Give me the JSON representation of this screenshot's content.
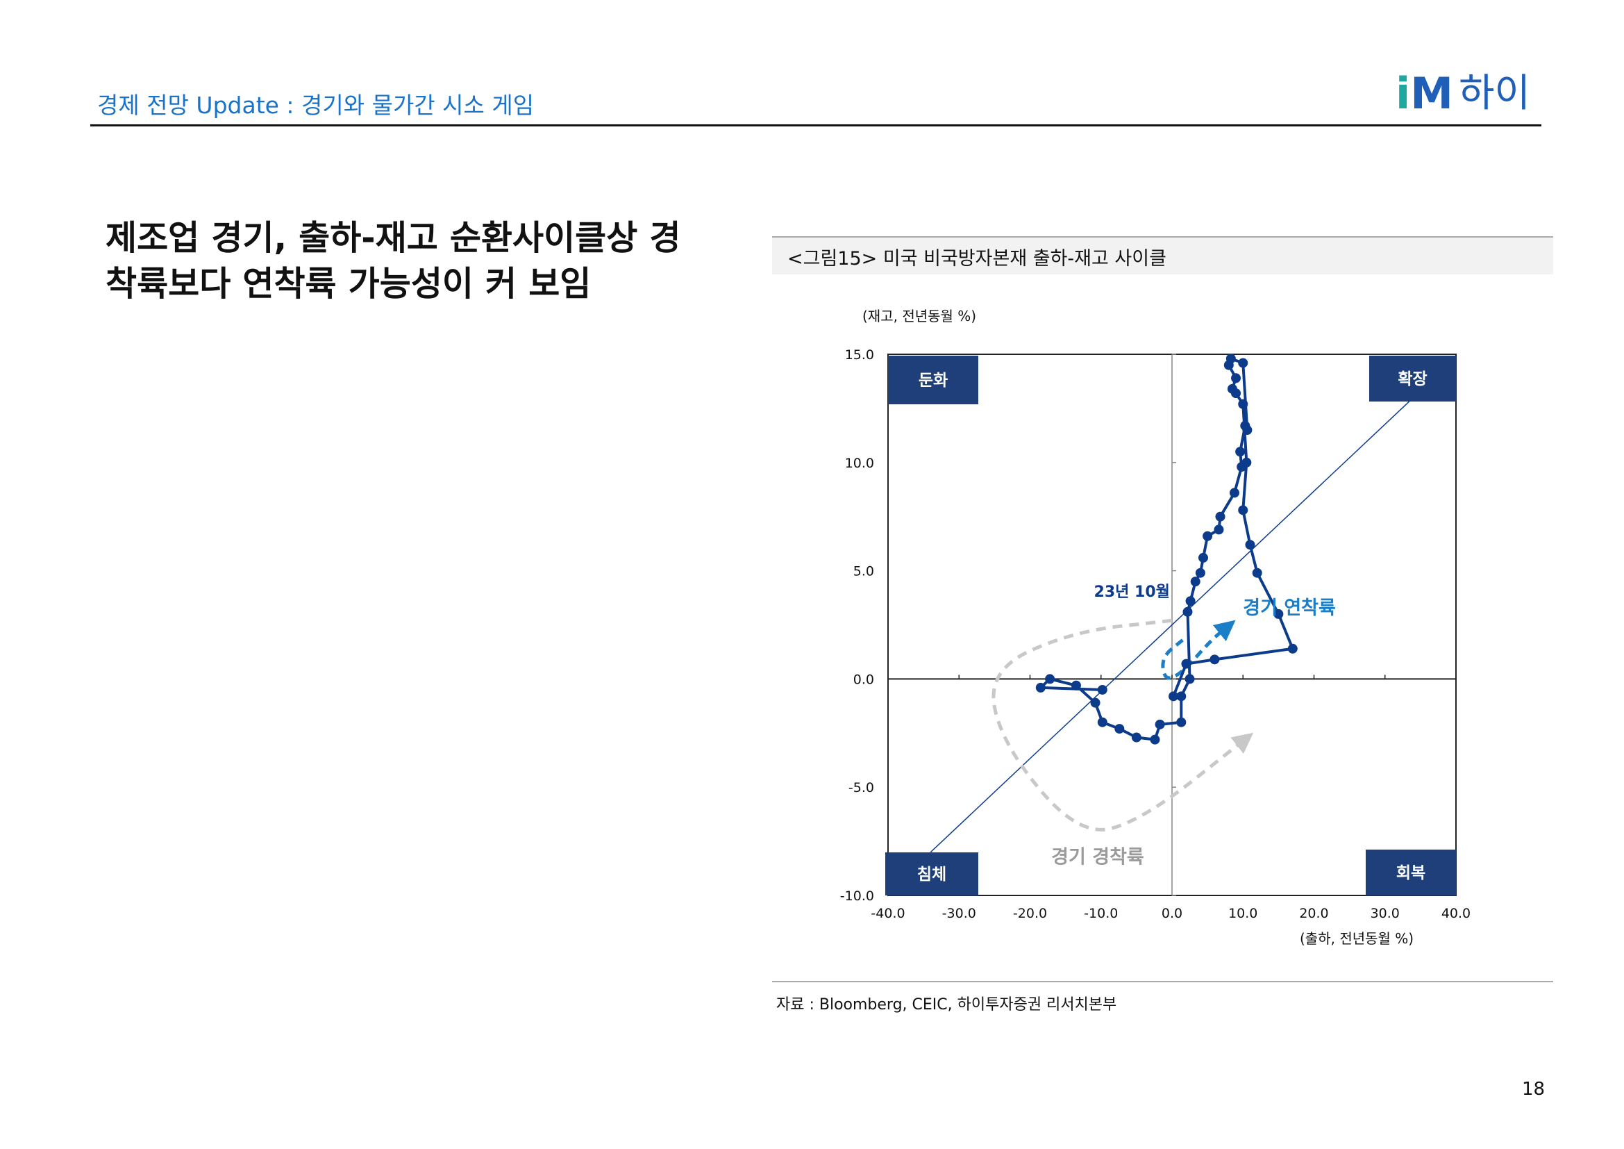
{
  "header": {
    "title": "경제 전망 Update : 경기와 물가간 시소 게임",
    "logo_i": "i",
    "logo_m": "M",
    "logo_text": "하이",
    "accent_color": "#1a73c8",
    "logo_color": "#1f5fb8"
  },
  "headline": {
    "line1": "제조업 경기, 출하-재고 순환사이클상 경",
    "line2": "착륙보다 연착륙 가능성이 커 보임"
  },
  "figure": {
    "caption": "<그림15> 미국 비국방자본재 출하-재고 사이클",
    "source": "자료 : Bloomberg, CEIC, 하이투자증권 리서치본부"
  },
  "page_number": "18",
  "chart_data": {
    "type": "scatter",
    "ylabel": "(재고, 전년동월 %)",
    "xlabel": "(출하, 전년동월 %)",
    "xlim": [
      -40,
      40
    ],
    "ylim": [
      -10,
      15
    ],
    "x_ticks": [
      "-40.0",
      "-30.0",
      "-20.0",
      "-10.0",
      "0.0",
      "10.0",
      "20.0",
      "30.0",
      "40.0"
    ],
    "x_tick_values": [
      -40,
      -30,
      -20,
      -10,
      0,
      10,
      20,
      30,
      40
    ],
    "y_ticks": [
      "-10.0",
      "-5.0",
      "0.0",
      "5.0",
      "10.0",
      "15.0"
    ],
    "y_tick_values": [
      -10,
      -5,
      0,
      5,
      10,
      15
    ],
    "quadrants": {
      "top_left": "둔화",
      "top_right": "확장",
      "bottom_left": "침체",
      "bottom_right": "회복"
    },
    "annotations": {
      "latest": "23년 10월",
      "soft_landing": "경기 연착륙",
      "hard_landing": "경기 경착륙"
    },
    "series_color": "#0d3b8c",
    "soft_color": "#1a7fc8",
    "hard_color": "#c8c8c8",
    "series": [
      {
        "name": "비국방자본재 출하-재고",
        "x": [
          0.2,
          2.0,
          6.0,
          17.0,
          15.0,
          12.0,
          11.0,
          10.0,
          10.5,
          10.0,
          9.0,
          8.5,
          9.0,
          8.0,
          8.3,
          10.0,
          10.6,
          10.3,
          9.6,
          9.8,
          8.8,
          6.8,
          6.6,
          5.0,
          4.4,
          4.0,
          3.3,
          2.6,
          2.2,
          2.5,
          1.3,
          1.3,
          -1.7,
          -2.4,
          -5.0,
          -7.4,
          -9.8,
          -10.8,
          -13.5,
          -17.2,
          -18.5,
          -9.8
        ],
        "y": [
          -0.8,
          0.7,
          0.9,
          1.4,
          3.0,
          4.9,
          6.2,
          7.8,
          10.0,
          12.7,
          13.2,
          13.4,
          13.9,
          14.5,
          14.8,
          14.6,
          11.5,
          11.7,
          10.5,
          9.8,
          8.6,
          7.5,
          6.9,
          6.6,
          5.6,
          4.9,
          4.5,
          3.6,
          3.1,
          0.0,
          -0.8,
          -2.0,
          -2.1,
          -2.8,
          -2.7,
          -2.3,
          -2.0,
          -1.1,
          -0.3,
          0.0,
          -0.4,
          -0.5
        ]
      }
    ],
    "line_45_from": [
      -34,
      -8
    ],
    "line_45_to": [
      34,
      13
    ]
  }
}
